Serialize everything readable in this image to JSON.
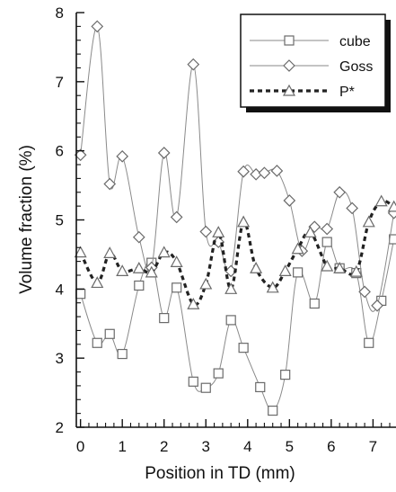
{
  "chart_data": {
    "type": "line",
    "xlabel": "Position in TD (mm)",
    "ylabel": "Volume fraction (%)",
    "xlim": [
      -0.1,
      7.55
    ],
    "ylim": [
      2,
      8
    ],
    "x_ticks": [
      "0",
      "1",
      "2",
      "3",
      "4",
      "5",
      "6",
      "7"
    ],
    "y_ticks": [
      "2",
      "3",
      "4",
      "5",
      "6",
      "7",
      "8"
    ],
    "grid": false,
    "legend_position": "top-right",
    "series": [
      {
        "name": "cube",
        "marker": "square",
        "line": "thin-solid",
        "color": "#8a8a8a",
        "x": [
          0.0,
          0.4,
          0.7,
          1.0,
          1.4,
          1.7,
          2.0,
          2.3,
          2.7,
          3.0,
          3.3,
          3.6,
          3.9,
          4.3,
          4.6,
          4.9,
          5.2,
          5.6,
          5.9,
          6.2,
          6.6,
          6.9,
          7.2,
          7.5
        ],
        "y": [
          3.93,
          3.22,
          3.35,
          3.06,
          4.05,
          4.38,
          3.58,
          4.02,
          2.66,
          2.57,
          2.78,
          3.55,
          3.15,
          2.58,
          2.24,
          2.76,
          4.24,
          3.79,
          4.68,
          4.3,
          4.23,
          3.22,
          3.83,
          4.72
        ]
      },
      {
        "name": "Goss",
        "marker": "diamond",
        "line": "thin-solid",
        "color": "#8a8a8a",
        "x": [
          0.0,
          0.4,
          0.7,
          1.0,
          1.4,
          1.7,
          2.0,
          2.3,
          2.7,
          3.0,
          3.3,
          3.6,
          3.9,
          4.2,
          4.4,
          4.7,
          5.0,
          5.3,
          5.6,
          5.9,
          6.2,
          6.5,
          6.8,
          7.1,
          7.5
        ],
        "y": [
          5.94,
          7.8,
          5.52,
          5.92,
          4.75,
          4.31,
          5.97,
          5.04,
          7.25,
          4.83,
          4.68,
          4.26,
          5.7,
          5.66,
          5.68,
          5.71,
          5.28,
          4.55,
          4.9,
          4.87,
          5.4,
          5.17,
          3.96,
          3.76,
          5.1
        ]
      },
      {
        "name": "P*",
        "marker": "triangle",
        "line": "bold-dashed",
        "color": "#222222",
        "x": [
          0.0,
          0.4,
          0.7,
          1.0,
          1.4,
          1.7,
          2.0,
          2.3,
          2.7,
          3.0,
          3.3,
          3.6,
          3.9,
          4.2,
          4.6,
          4.9,
          5.2,
          5.5,
          5.9,
          6.2,
          6.6,
          6.9,
          7.2,
          7.5
        ],
        "y": [
          4.53,
          4.09,
          4.52,
          4.26,
          4.3,
          4.24,
          4.53,
          4.39,
          3.78,
          4.07,
          4.82,
          4.0,
          4.97,
          4.3,
          4.02,
          4.26,
          4.58,
          4.82,
          4.33,
          4.3,
          4.25,
          4.97,
          5.27,
          5.19
        ]
      }
    ]
  }
}
